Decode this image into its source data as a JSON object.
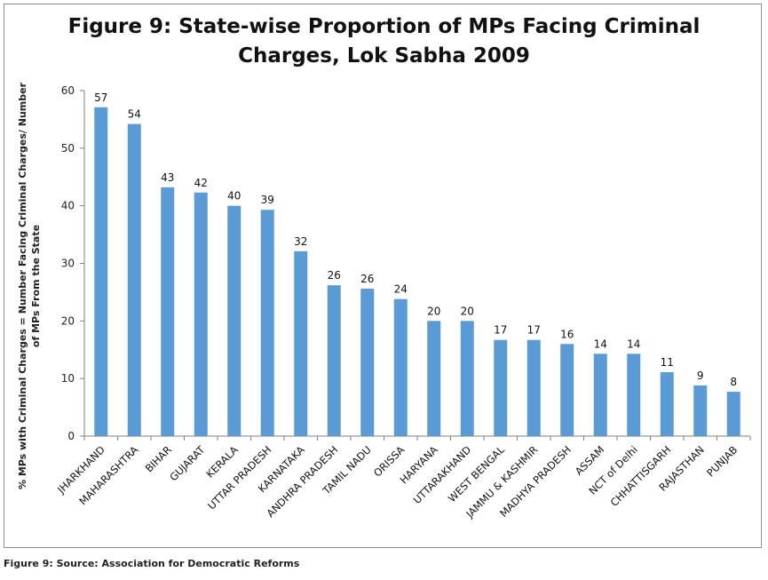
{
  "caption": "Figure 9: Source: Association for Democratic Reforms",
  "chart_data": {
    "type": "bar",
    "title_line1": "Figure 9: State-wise Proportion of MPs Facing Criminal",
    "title_line2": "Charges, Lok Sabha 2009",
    "ylabel_line1": "% MPs with Criminal Charges = Number Facing Criminal Charges/ Number",
    "ylabel_line2": "of MPs From the State",
    "xlabel": "",
    "ylim": [
      0,
      60
    ],
    "yticks": [
      0,
      10,
      20,
      30,
      40,
      50,
      60
    ],
    "grid": false,
    "categories": [
      "JHARKHAND",
      "MAHARASHTRA",
      "BIHAR",
      "GUJARAT",
      "KERALA",
      "UTTAR PRADESH",
      "KARNATAKA",
      "ANDHRA PRADESH",
      "TAMIL NADU",
      "ORISSA",
      "HARYANA",
      "UTTARAKHAND",
      "WEST BENGAL",
      "JAMMU & KASHMIR",
      "MADHYA PRADESH",
      "ASSAM",
      "NCT of Delhi",
      "CHHATTISGARH",
      "RAJASTHAN",
      "PUNJAB"
    ],
    "values": [
      57.1,
      54.2,
      43.2,
      42.3,
      40,
      39.3,
      32.1,
      26.2,
      25.6,
      23.8,
      20,
      20,
      16.7,
      16.7,
      16,
      14.3,
      14.3,
      11.1,
      8.8,
      7.7
    ],
    "data_labels": [
      "57",
      "54",
      "43",
      "42",
      "40",
      "39",
      "32",
      "26",
      "26",
      "24",
      "20",
      "20",
      "17",
      "17",
      "16",
      "14",
      "14",
      "11",
      "9",
      "8"
    ],
    "bar_color": "#5b9bd5"
  }
}
